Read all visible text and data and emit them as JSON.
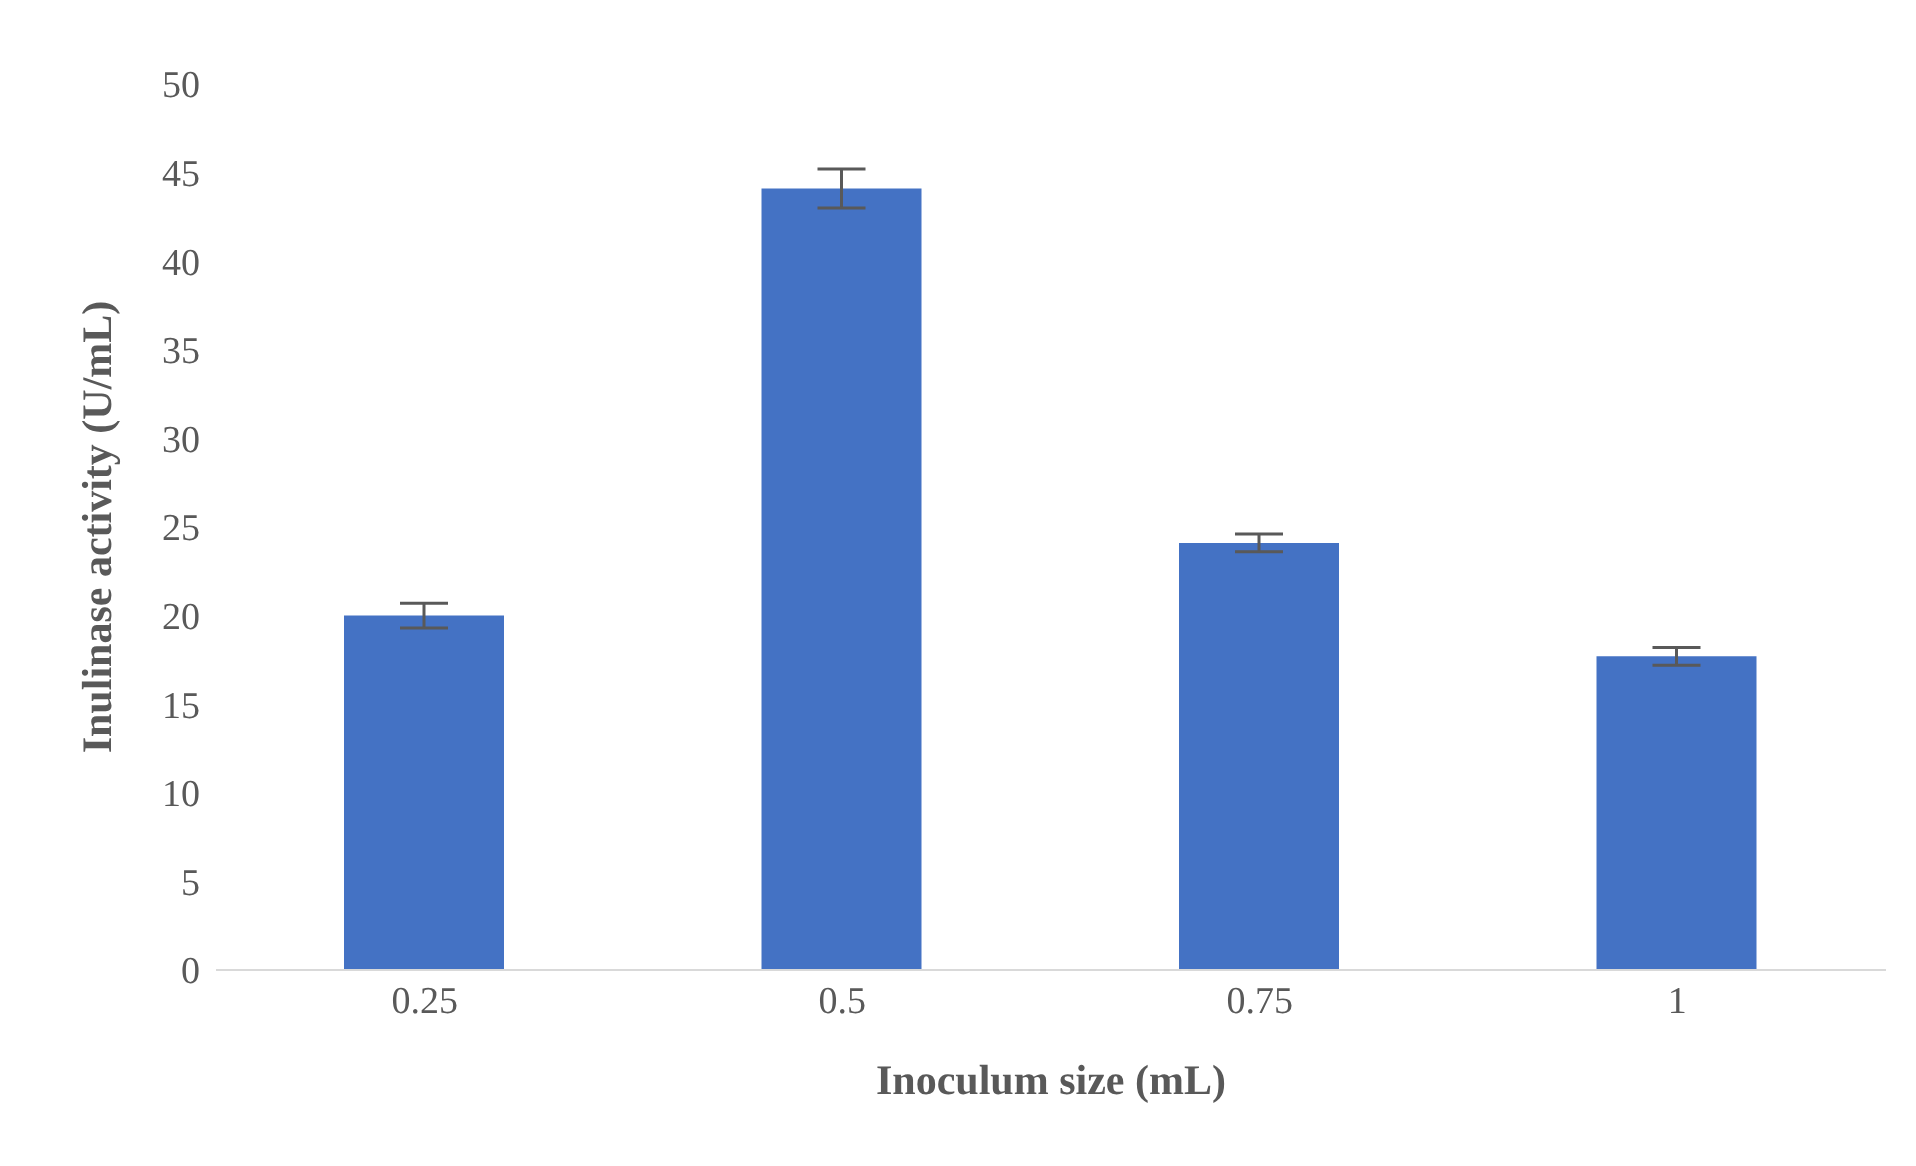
{
  "chart_data": {
    "type": "bar",
    "xlabel": "Inoculum size (mL)",
    "ylabel": "Inulinase activity (U/mL)",
    "categories": [
      "0.25",
      "0.5",
      "0.75",
      "1"
    ],
    "values": [
      20.0,
      44.1,
      24.1,
      17.7
    ],
    "errors": [
      0.7,
      1.1,
      0.5,
      0.5
    ],
    "color": "#4472c4",
    "ylim": [
      0,
      50
    ],
    "yticks": [
      0,
      5,
      10,
      15,
      20,
      25,
      30,
      35,
      40,
      45,
      50
    ],
    "grid": false
  }
}
